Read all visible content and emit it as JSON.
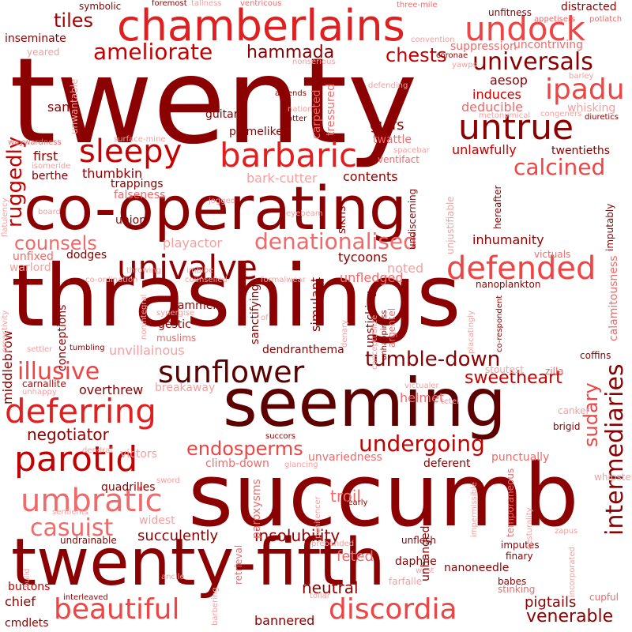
{
  "colors": {
    "background": "#ffffff",
    "palette": [
      "#8b0000",
      "#5c0000",
      "#a30000",
      "#c40000",
      "#e02020",
      "#ee4444",
      "#f06a6a",
      "#f4a0a0"
    ]
  },
  "words": [
    {
      "text": "twenty",
      "color": "#8b0000"
    },
    {
      "text": "thrashings",
      "color": "#8b0000"
    },
    {
      "text": "succumb",
      "color": "#8b0000"
    },
    {
      "text": "seeming",
      "color": "#5c0000"
    },
    {
      "text": "co-operating",
      "color": "#8b0000"
    },
    {
      "text": "twenty-fifth",
      "color": "#8b0000"
    },
    {
      "text": "chamberlains",
      "color": "#e02020"
    },
    {
      "text": "undock",
      "color": "#ee4444"
    },
    {
      "text": "universals",
      "color": "#8b0000"
    },
    {
      "text": "ipadu",
      "color": "#ee4444"
    },
    {
      "text": "untrue",
      "color": "#8b0000"
    },
    {
      "text": "sleepy",
      "color": "#c40000"
    },
    {
      "text": "barbaric",
      "color": "#e02020"
    },
    {
      "text": "calcined",
      "color": "#ee4444"
    },
    {
      "text": "univalve",
      "color": "#8b0000"
    },
    {
      "text": "defended",
      "color": "#ee4444"
    },
    {
      "text": "denationalised",
      "color": "#f06a6a"
    },
    {
      "text": "counsels",
      "color": "#f06a6a"
    },
    {
      "text": "sunflower",
      "color": "#5c0000"
    },
    {
      "text": "illusive",
      "color": "#ee4444"
    },
    {
      "text": "deferring",
      "color": "#e02020"
    },
    {
      "text": "parotid",
      "color": "#c40000"
    },
    {
      "text": "endosperms",
      "color": "#ee4444"
    },
    {
      "text": "undergoing",
      "color": "#c40000"
    },
    {
      "text": "umbratic",
      "color": "#f06a6a"
    },
    {
      "text": "casuist",
      "color": "#f06a6a"
    },
    {
      "text": "beautiful",
      "color": "#ee4444"
    },
    {
      "text": "discordia",
      "color": "#ee4444"
    },
    {
      "text": "venerable",
      "color": "#8b0000"
    },
    {
      "text": "ameliorate",
      "color": "#c40000"
    },
    {
      "text": "hammada",
      "color": "#8b0000"
    },
    {
      "text": "chests",
      "color": "#c40000"
    },
    {
      "text": "tiles",
      "color": "#a30000"
    },
    {
      "text": "tumble-down",
      "color": "#8b0000"
    },
    {
      "text": "sweetheart",
      "color": "#c40000"
    },
    {
      "text": "intermediaries",
      "color": "#8b0000"
    },
    {
      "text": "sudary",
      "color": "#ee4444"
    },
    {
      "text": "ruggedly",
      "color": "#c40000"
    },
    {
      "text": "insolubility",
      "color": "#8b0000"
    },
    {
      "text": "succulently",
      "color": "#8b0000"
    },
    {
      "text": "negotiator",
      "color": "#8b0000"
    },
    {
      "text": "neutral",
      "color": "#8b0000"
    },
    {
      "text": "pigtails",
      "color": "#8b0000"
    },
    {
      "text": "inhumanity",
      "color": "#8b0000"
    },
    {
      "text": "deducible",
      "color": "#f06a6a"
    },
    {
      "text": "induces",
      "color": "#c40000"
    },
    {
      "text": "aesop",
      "color": "#8b0000"
    },
    {
      "text": "whisking",
      "color": "#f4a0a0"
    },
    {
      "text": "gulfs",
      "color": "#8b0000"
    },
    {
      "text": "twattle",
      "color": "#f06a6a"
    },
    {
      "text": "unlawfully",
      "color": "#c40000"
    },
    {
      "text": "twentieths",
      "color": "#8b0000"
    },
    {
      "text": "uncontriving",
      "color": "#f06a6a"
    },
    {
      "text": "suppression",
      "color": "#f06a6a"
    },
    {
      "text": "tycoons",
      "color": "#8b0000"
    },
    {
      "text": "noted",
      "color": "#f4a0a0"
    },
    {
      "text": "unfledged",
      "color": "#f06a6a"
    },
    {
      "text": "playactor",
      "color": "#f4a0a0"
    },
    {
      "text": "thumbkin",
      "color": "#8b0000"
    },
    {
      "text": "trappings",
      "color": "#8b0000"
    },
    {
      "text": "falseness",
      "color": "#f06a6a"
    },
    {
      "text": "bark-cutter",
      "color": "#f4a0a0"
    },
    {
      "text": "contents",
      "color": "#8b0000"
    },
    {
      "text": "first",
      "color": "#8b0000"
    },
    {
      "text": "berthe",
      "color": "#8b0000"
    },
    {
      "text": "union",
      "color": "#8b0000"
    },
    {
      "text": "dodges",
      "color": "#8b0000"
    },
    {
      "text": "unfixed",
      "color": "#f06a6a"
    },
    {
      "text": "warlord",
      "color": "#f4a0a0"
    },
    {
      "text": "guitars",
      "color": "#8b0000"
    },
    {
      "text": "plumelike",
      "color": "#8b0000"
    },
    {
      "text": "san",
      "color": "#8b0000"
    },
    {
      "text": "inseminate",
      "color": "#8b0000"
    },
    {
      "text": "symbolic",
      "color": "#8b0000"
    },
    {
      "text": "hammers",
      "color": "#8b0000"
    },
    {
      "text": "gestic",
      "color": "#8b0000"
    },
    {
      "text": "muslims",
      "color": "#f06a6a"
    },
    {
      "text": "synergise",
      "color": "#f4a0a0"
    },
    {
      "text": "unvillainous",
      "color": "#f4a0a0"
    },
    {
      "text": "dendranthema",
      "color": "#8b0000"
    },
    {
      "text": "helmet",
      "color": "#f06a6a"
    },
    {
      "text": "overthrew",
      "color": "#8b0000"
    },
    {
      "text": "breakaway",
      "color": "#f4a0a0"
    },
    {
      "text": "carnallite",
      "color": "#c40000"
    },
    {
      "text": "victors",
      "color": "#f4a0a0"
    },
    {
      "text": "climb-down",
      "color": "#f06a6a"
    },
    {
      "text": "unvariedness",
      "color": "#f06a6a"
    },
    {
      "text": "deferent",
      "color": "#8b0000"
    },
    {
      "text": "punctually",
      "color": "#f06a6a"
    },
    {
      "text": "quadrilles",
      "color": "#8b0000"
    },
    {
      "text": "widest",
      "color": "#f4a0a0"
    },
    {
      "text": "troil",
      "color": "#f06a6a"
    },
    {
      "text": "feted",
      "color": "#f06a6a"
    },
    {
      "text": "daphne",
      "color": "#8b0000"
    },
    {
      "text": "buttons",
      "color": "#c40000"
    },
    {
      "text": "chief",
      "color": "#8b0000"
    },
    {
      "text": "cmdlets",
      "color": "#8b0000"
    },
    {
      "text": "bannered",
      "color": "#8b0000"
    },
    {
      "text": "interleaved",
      "color": "#8b0000"
    },
    {
      "text": "undrainable",
      "color": "#8b0000"
    },
    {
      "text": "sentients",
      "color": "#f4a0a0"
    },
    {
      "text": "sword",
      "color": "#f4a0a0"
    },
    {
      "text": "unflesh",
      "color": "#8b0000"
    },
    {
      "text": "prebended",
      "color": "#f4a0a0"
    },
    {
      "text": "farfalle",
      "color": "#f4a0a0"
    },
    {
      "text": "west",
      "color": "#f4a0a0"
    },
    {
      "text": "nanoneedle",
      "color": "#8b0000"
    },
    {
      "text": "imputes",
      "color": "#8b0000"
    },
    {
      "text": "finary",
      "color": "#8b0000"
    },
    {
      "text": "babes",
      "color": "#8b0000"
    },
    {
      "text": "stinking",
      "color": "#f06a6a"
    },
    {
      "text": "cupful",
      "color": "#f06a6a"
    },
    {
      "text": "whipster",
      "color": "#f4a0a0"
    },
    {
      "text": "zilla",
      "color": "#f06a6a"
    },
    {
      "text": "coffins",
      "color": "#8b0000"
    },
    {
      "text": "canker",
      "color": "#f4a0a0"
    },
    {
      "text": "brigid",
      "color": "#8b0000"
    },
    {
      "text": "victuals",
      "color": "#f06a6a"
    },
    {
      "text": "tetel",
      "color": "#f4a0a0"
    },
    {
      "text": "victualer",
      "color": "#f4a0a0"
    },
    {
      "text": "stoutest",
      "color": "#f4a0a0"
    },
    {
      "text": "nanoplankton",
      "color": "#8b0000"
    },
    {
      "text": "distracted",
      "color": "#8b0000"
    },
    {
      "text": "appetisers",
      "color": "#f06a6a"
    },
    {
      "text": "potlatch",
      "color": "#f06a6a"
    },
    {
      "text": "unfitness",
      "color": "#8b0000"
    },
    {
      "text": "barley",
      "color": "#f4a0a0"
    },
    {
      "text": "diuretics",
      "color": "#8b0000"
    },
    {
      "text": "congeners",
      "color": "#f4a0a0"
    },
    {
      "text": "metonymical",
      "color": "#f4a0a0"
    },
    {
      "text": "yawps",
      "color": "#f4a0a0"
    },
    {
      "text": "coronae",
      "color": "#8b0000"
    },
    {
      "text": "convention",
      "color": "#f4a0a0"
    },
    {
      "text": "three-mile",
      "color": "#f06a6a"
    },
    {
      "text": "ventricous",
      "color": "#f06a6a"
    },
    {
      "text": "tallness",
      "color": "#f4a0a0"
    },
    {
      "text": "foremost",
      "color": "#8b0000"
    },
    {
      "text": "yeared",
      "color": "#f4a0a0"
    },
    {
      "text": "nonserious",
      "color": "#f4a0a0"
    },
    {
      "text": "defending",
      "color": "#f4a0a0"
    },
    {
      "text": "spacebar",
      "color": "#f4a0a0"
    },
    {
      "text": "ventifact",
      "color": "#f06a6a"
    },
    {
      "text": "jogged",
      "color": "#f4a0a0"
    },
    {
      "text": "eyebeam",
      "color": "#f4a0a0"
    },
    {
      "text": "board",
      "color": "#f4a0a0"
    },
    {
      "text": "surface-mine",
      "color": "#f4a0a0"
    },
    {
      "text": "waywardness",
      "color": "#f06a6a"
    },
    {
      "text": "isomeride",
      "color": "#f4a0a0"
    },
    {
      "text": "amends",
      "color": "#8b0000"
    },
    {
      "text": "nation",
      "color": "#f4a0a0"
    },
    {
      "text": "otter",
      "color": "#8b0000"
    },
    {
      "text": "throwing",
      "color": "#f4a0a0"
    },
    {
      "text": "imbibe",
      "color": "#f4a0a0"
    },
    {
      "text": "co-ordination",
      "color": "#f4a0a0"
    },
    {
      "text": "counselled",
      "color": "#f4a0a0"
    },
    {
      "text": "formalwear",
      "color": "#f4a0a0"
    },
    {
      "text": "of",
      "color": "#f4a0a0"
    },
    {
      "text": "settler",
      "color": "#f4a0a0"
    },
    {
      "text": "tumbling",
      "color": "#8b0000"
    },
    {
      "text": "unhappy",
      "color": "#f4a0a0"
    },
    {
      "text": "dendral",
      "color": "#f4a0a0"
    },
    {
      "text": "succors",
      "color": "#8b0000"
    },
    {
      "text": "glancing",
      "color": "#f4a0a0"
    },
    {
      "text": "nearly",
      "color": "#8b0000"
    },
    {
      "text": "ancile",
      "color": "#f4a0a0"
    },
    {
      "text": "tollar",
      "color": "#f4a0a0"
    },
    {
      "text": "zapus",
      "color": "#f4a0a0"
    },
    {
      "text": "middlebrow",
      "color": "#8b0000"
    },
    {
      "text": "conceptions",
      "color": "#8b0000"
    },
    {
      "text": "unwantable",
      "color": "#f4a0a0"
    },
    {
      "text": "flatulency",
      "color": "#f4a0a0"
    },
    {
      "text": "proactivity",
      "color": "#f4a0a0"
    },
    {
      "text": "nonintegral",
      "color": "#f4a0a0"
    },
    {
      "text": "sanctifying",
      "color": "#8b0000"
    },
    {
      "text": "simulant",
      "color": "#8b0000"
    },
    {
      "text": "carpeted",
      "color": "#f06a6a"
    },
    {
      "text": "tressured",
      "color": "#f06a6a"
    },
    {
      "text": "sikhs",
      "color": "#8b0000"
    },
    {
      "text": "undiscerning",
      "color": "#8b0000"
    },
    {
      "text": "unjustifiable",
      "color": "#f4a0a0"
    },
    {
      "text": "hereafter",
      "color": "#8b0000"
    },
    {
      "text": "imputably",
      "color": "#8b0000"
    },
    {
      "text": "calamitousness",
      "color": "#f06a6a"
    },
    {
      "text": "co-respondent",
      "color": "#8b0000"
    },
    {
      "text": "placatingly",
      "color": "#f4a0a0"
    },
    {
      "text": "unsticking",
      "color": "#8b0000"
    },
    {
      "text": "denary",
      "color": "#f4a0a0"
    },
    {
      "text": "conceptualize",
      "color": "#f4a0a0"
    },
    {
      "text": "unhappiness",
      "color": "#8b0000"
    },
    {
      "text": "argentel",
      "color": "#f06a6a"
    },
    {
      "text": "retrieval",
      "color": "#f06a6a"
    },
    {
      "text": "paroxysms",
      "color": "#f06a6a"
    },
    {
      "text": "unhanged",
      "color": "#8b0000"
    },
    {
      "text": "penitencer",
      "color": "#f4a0a0"
    },
    {
      "text": "impermissible",
      "color": "#f4a0a0"
    },
    {
      "text": "temporaneous",
      "color": "#f06a6a"
    },
    {
      "text": "gesturality",
      "color": "#f4a0a0"
    },
    {
      "text": "incorporated",
      "color": "#f4a0a0"
    },
    {
      "text": "build",
      "color": "#f4a0a0"
    },
    {
      "text": "barbering",
      "color": "#f4a0a0"
    }
  ]
}
